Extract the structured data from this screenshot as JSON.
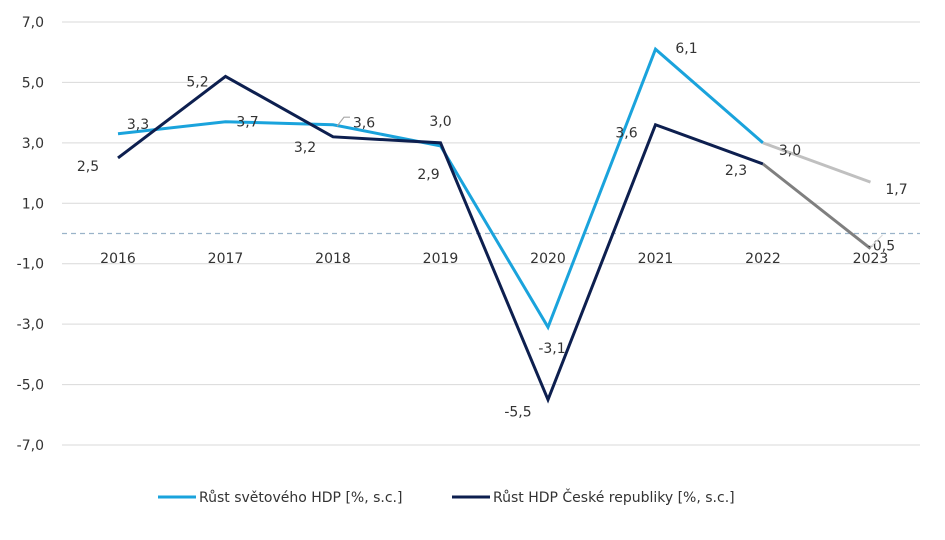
{
  "chart_data": {
    "type": "line",
    "categories": [
      "2016",
      "2017",
      "2018",
      "2019",
      "2020",
      "2021",
      "2022",
      "2023"
    ],
    "y_tick_labels": [
      "7,0",
      "5,0",
      "3,0",
      "1,0",
      "-1,0",
      "-3,0",
      "-5,0",
      "-7,0"
    ],
    "ylim": [
      -7,
      7
    ],
    "y_ticks": [
      7,
      5,
      3,
      1,
      -1,
      -3,
      -5,
      -7
    ],
    "grid": "horizontal",
    "zero_line": "dashed",
    "legend_position": "bottom",
    "series": [
      {
        "name": "Růst světového HDP [%, s.c.]",
        "color": "#1aa3dc",
        "forecast_color": "#c0c0c0",
        "values": [
          3.3,
          3.7,
          3.6,
          2.9,
          -3.1,
          6.1,
          3.0,
          1.7
        ],
        "labels": [
          "3,3",
          "3,7",
          "3,6",
          "2,9",
          "-3,1",
          "6,1",
          "3,0",
          "1,7"
        ]
      },
      {
        "name": "Růst HDP České republiky [%, s.c.]",
        "color": "#0d1f4f",
        "forecast_color": "#7f7f7f",
        "values": [
          2.5,
          5.2,
          3.2,
          3.0,
          -5.5,
          3.6,
          2.3,
          -0.5
        ],
        "labels": [
          "2,5",
          "5,2",
          "3,2",
          "3,0",
          "-5,5",
          "3,6",
          "2,3",
          "-0,5"
        ]
      }
    ]
  }
}
